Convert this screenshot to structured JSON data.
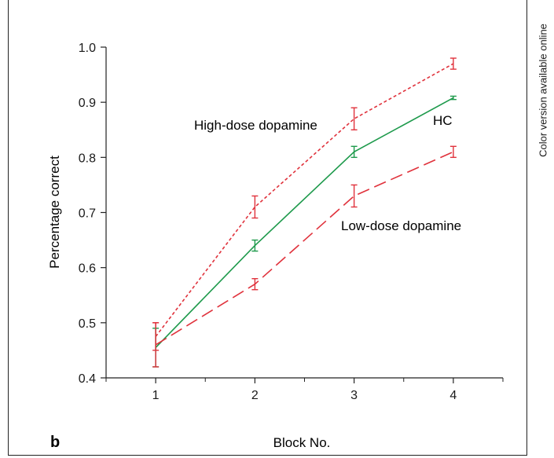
{
  "panel_label": "b",
  "side_note": "Color version available online",
  "colors": {
    "hc": "#1e9a4c",
    "dopamine": "#e0323c",
    "axis": "#222222"
  },
  "chart_data": {
    "type": "line",
    "xlabel": "Block No.",
    "ylabel": "Percentage correct",
    "x": [
      1,
      2,
      3,
      4
    ],
    "xlim": [
      0.5,
      4.5
    ],
    "ylim": [
      0.4,
      1.0
    ],
    "yticks": [
      0.4,
      0.5,
      0.6,
      0.7,
      0.8,
      0.9,
      1.0
    ],
    "ytick_labels": [
      "0.4",
      "0.5",
      "0.6",
      "0.7",
      "0.8",
      "0.9",
      "1.0"
    ],
    "xtick_labels": [
      "1",
      "2",
      "3",
      "4"
    ],
    "grid": false,
    "series": [
      {
        "name": "High-dose dopamine",
        "style": "dotted",
        "color": "#e0323c",
        "values": [
          0.475,
          0.71,
          0.87,
          0.97
        ],
        "errors": [
          0.025,
          0.02,
          0.02,
          0.01
        ]
      },
      {
        "name": "HC",
        "style": "solid",
        "color": "#1e9a4c",
        "values": [
          0.455,
          0.64,
          0.81,
          0.908
        ],
        "errors": [
          0.035,
          0.01,
          0.01,
          0.003
        ]
      },
      {
        "name": "Low-dose dopamine",
        "style": "dashed",
        "color": "#e0323c",
        "values": [
          0.46,
          0.57,
          0.73,
          0.81
        ],
        "errors": [
          0.04,
          0.01,
          0.02,
          0.01
        ]
      }
    ],
    "annotations": [
      "High-dose dopamine",
      "HC",
      "Low-dose dopamine"
    ]
  }
}
